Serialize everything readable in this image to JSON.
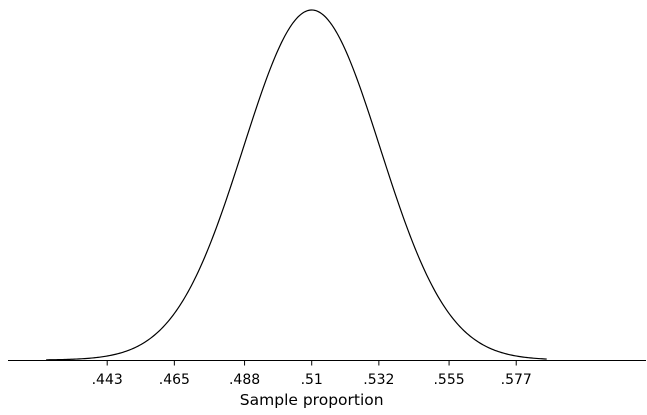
{
  "chart_data": {
    "type": "line",
    "title": "",
    "xlabel": "Sample proportion",
    "ylabel": "",
    "series": [
      {
        "distribution": "normal",
        "mean": 0.51,
        "std": 0.0224
      }
    ],
    "x_ticks": [
      0.443,
      0.465,
      0.488,
      0.51,
      0.532,
      0.555,
      0.577
    ],
    "x_tick_labels": [
      ".443",
      ".465",
      ".488",
      ".51",
      ".532",
      ".555",
      ".577"
    ],
    "xlim": [
      0.4105,
      0.6205
    ],
    "curve_range": [
      0.423,
      0.587
    ],
    "y_axis_visible": false,
    "grid": false,
    "legend": "none",
    "line_color": "#000000"
  }
}
